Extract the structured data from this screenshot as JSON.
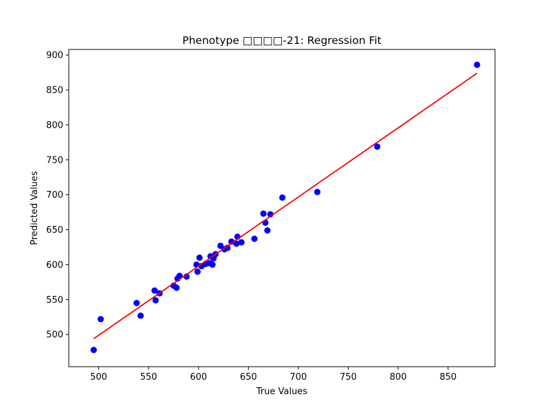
{
  "chart_data": {
    "type": "scatter",
    "title": "Phenotype □□□□-21: Regression Fit",
    "xlabel": "True Values",
    "ylabel": "Predicted Values",
    "xlim": [
      470,
      897
    ],
    "ylim": [
      454,
      908
    ],
    "xticks": [
      500,
      550,
      600,
      650,
      700,
      750,
      800,
      850
    ],
    "yticks": [
      500,
      550,
      600,
      650,
      700,
      750,
      800,
      850,
      900
    ],
    "grid": false,
    "colors": {
      "points": "#0000ff",
      "fit_line": "#ff0000"
    },
    "points": [
      {
        "x": 495,
        "y": 478
      },
      {
        "x": 502,
        "y": 522
      },
      {
        "x": 538,
        "y": 545
      },
      {
        "x": 542,
        "y": 527
      },
      {
        "x": 556,
        "y": 563
      },
      {
        "x": 557,
        "y": 549
      },
      {
        "x": 561,
        "y": 559
      },
      {
        "x": 575,
        "y": 570
      },
      {
        "x": 578,
        "y": 567
      },
      {
        "x": 579,
        "y": 580
      },
      {
        "x": 581,
        "y": 584
      },
      {
        "x": 588,
        "y": 583
      },
      {
        "x": 598,
        "y": 600
      },
      {
        "x": 599,
        "y": 590
      },
      {
        "x": 601,
        "y": 610
      },
      {
        "x": 603,
        "y": 598
      },
      {
        "x": 607,
        "y": 601
      },
      {
        "x": 611,
        "y": 602
      },
      {
        "x": 612,
        "y": 612
      },
      {
        "x": 614,
        "y": 600
      },
      {
        "x": 615,
        "y": 609
      },
      {
        "x": 617,
        "y": 615
      },
      {
        "x": 622,
        "y": 627
      },
      {
        "x": 626,
        "y": 622
      },
      {
        "x": 629,
        "y": 624
      },
      {
        "x": 633,
        "y": 633
      },
      {
        "x": 638,
        "y": 630
      },
      {
        "x": 639,
        "y": 640
      },
      {
        "x": 643,
        "y": 632
      },
      {
        "x": 656,
        "y": 637
      },
      {
        "x": 665,
        "y": 673
      },
      {
        "x": 667,
        "y": 660
      },
      {
        "x": 669,
        "y": 649
      },
      {
        "x": 672,
        "y": 672
      },
      {
        "x": 684,
        "y": 696
      },
      {
        "x": 719,
        "y": 704
      },
      {
        "x": 779,
        "y": 769
      },
      {
        "x": 879,
        "y": 886
      }
    ],
    "fit_line": {
      "x": [
        495,
        879
      ],
      "y": [
        494,
        874
      ]
    }
  }
}
